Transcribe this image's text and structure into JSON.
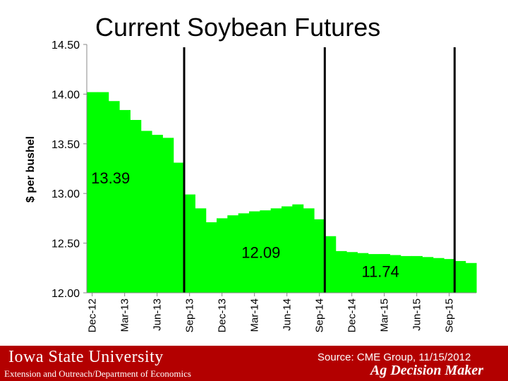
{
  "slide": {
    "title": "Current Soybean Futures"
  },
  "chart_data": {
    "type": "bar",
    "title": "Current Soybean Futures",
    "ylabel": "$ per bushel",
    "xlabel": "",
    "ylim": [
      12.0,
      14.5
    ],
    "yticks": [
      "14.50",
      "14.00",
      "13.50",
      "13.00",
      "12.50",
      "12.00"
    ],
    "ytick_values": [
      14.5,
      14.0,
      13.5,
      13.0,
      12.5,
      12.0
    ],
    "xtick_labels": [
      "Dec-12",
      "Mar-13",
      "Jun-13",
      "Sep-13",
      "Dec-13",
      "Mar-14",
      "Jun-14",
      "Sep-14",
      "Dec-14",
      "Mar-15",
      "Jun-15",
      "Sep-15"
    ],
    "values": [
      14.02,
      14.02,
      13.93,
      13.84,
      13.74,
      13.63,
      13.59,
      13.56,
      13.31,
      12.99,
      12.85,
      12.71,
      12.75,
      12.78,
      12.8,
      12.82,
      12.83,
      12.85,
      12.87,
      12.89,
      12.85,
      12.74,
      12.57,
      12.42,
      12.41,
      12.4,
      12.39,
      12.39,
      12.38,
      12.37,
      12.37,
      12.36,
      12.35,
      12.34,
      12.32,
      12.3
    ],
    "bar_color": "#00ff00",
    "divider_after_index": [
      8,
      21,
      33
    ],
    "annotations": [
      "13.39",
      "12.09",
      "11.74"
    ],
    "annotation_anchor": [
      [
        0.4,
        13.1
      ],
      [
        14.3,
        12.35
      ],
      [
        25.4,
        12.16
      ]
    ],
    "grid": false,
    "legend": "none"
  },
  "footer": {
    "university": "Iowa State University",
    "department": "Extension and Outreach/Department of Economics",
    "source": "Source: CME Group, 11/15/2012",
    "brand": "Ag Decision Maker"
  },
  "colors": {
    "footer_bg": "#b30000",
    "bars": "#00ff00",
    "dividers": "#000000"
  }
}
